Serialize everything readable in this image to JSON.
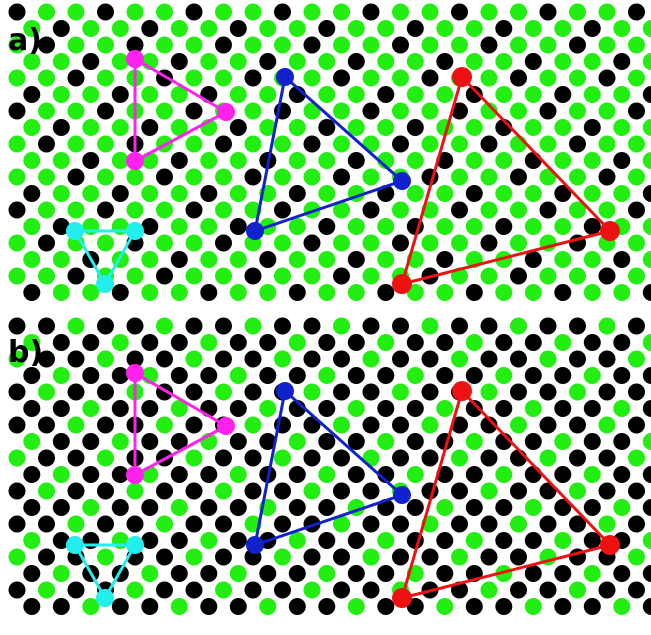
{
  "panels": [
    {
      "label": "a)"
    },
    {
      "label": "b)"
    }
  ],
  "colors": {
    "background": "#ffffff",
    "dot_black": "#000000",
    "dot_green": "#22ee11",
    "triangle_magenta": "#ff22ee",
    "triangle_cyan": "#22eeee",
    "triangle_blue": "#1122cc",
    "triangle_red": "#ee1111"
  },
  "triangles": [
    {
      "name": "magenta-triangle",
      "color": "magenta"
    },
    {
      "name": "cyan-triangle",
      "color": "cyan"
    },
    {
      "name": "blue-triangle",
      "color": "blue"
    },
    {
      "name": "red-triangle",
      "color": "red"
    }
  ]
}
